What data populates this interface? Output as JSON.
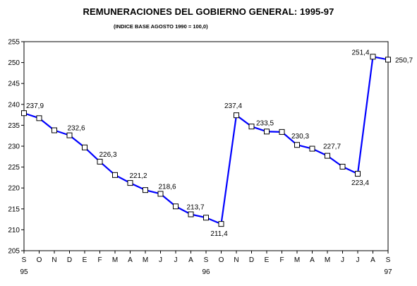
{
  "chart_data": {
    "type": "line",
    "title": "REMUNERACIONES DEL GOBIERNO GENERAL: 1995-97",
    "subtitle": "(INDICE BASE AGOSTO 1990 = 100,0)",
    "xlabel": "",
    "ylabel": "",
    "ylim": [
      205,
      255
    ],
    "yticks": [
      "205",
      "210",
      "215",
      "220",
      "225",
      "230",
      "235",
      "240",
      "245",
      "250",
      "255"
    ],
    "categories": [
      "S",
      "O",
      "N",
      "D",
      "E",
      "F",
      "M",
      "A",
      "M",
      "J",
      "J",
      "A",
      "S",
      "O",
      "N",
      "D",
      "E",
      "F",
      "M",
      "A",
      "M",
      "J",
      "J",
      "A",
      "S"
    ],
    "year_labels": [
      {
        "index": 0,
        "text": "95"
      },
      {
        "index": 12,
        "text": "96"
      },
      {
        "index": 24,
        "text": "97"
      }
    ],
    "grid": false,
    "legend": "none",
    "line_color": "#0000ff",
    "marker_fill": "#ffffff",
    "marker_stroke": "#000000",
    "series": [
      {
        "values": [
          237.9,
          236.7,
          233.8,
          232.6,
          229.7,
          226.3,
          223.1,
          221.2,
          219.5,
          218.6,
          215.6,
          213.7,
          212.9,
          211.4,
          237.4,
          234.7,
          233.5,
          233.4,
          230.3,
          229.4,
          227.7,
          225.1,
          223.4,
          251.4,
          250.7
        ]
      }
    ],
    "data_labels": [
      {
        "index": 0,
        "text": "237,9"
      },
      {
        "index": 3,
        "text": "232,6"
      },
      {
        "index": 5,
        "text": "226,3"
      },
      {
        "index": 7,
        "text": "221,2"
      },
      {
        "index": 9,
        "text": "218,6"
      },
      {
        "index": 11,
        "text": "213,7"
      },
      {
        "index": 13,
        "text": "211,4"
      },
      {
        "index": 14,
        "text": "237,4"
      },
      {
        "index": 16,
        "text": "233,5"
      },
      {
        "index": 18,
        "text": "230,3"
      },
      {
        "index": 20,
        "text": "227,7"
      },
      {
        "index": 22,
        "text": "223,4"
      },
      {
        "index": 23,
        "text": "251,4"
      },
      {
        "index": 24,
        "text": "250,7"
      }
    ]
  }
}
